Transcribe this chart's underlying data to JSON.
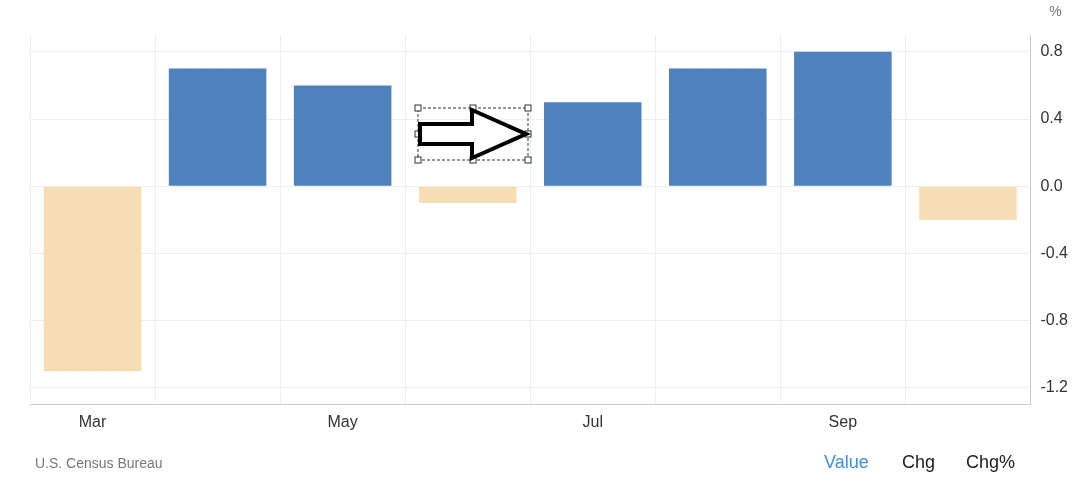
{
  "chart_data": {
    "type": "bar",
    "categories": [
      "Mar",
      null,
      "May",
      null,
      "Jul",
      null,
      "Sep",
      null
    ],
    "values": [
      -1.1,
      0.7,
      0.6,
      -0.1,
      0.5,
      0.7,
      0.8,
      -0.2
    ],
    "colors": [
      "#f5deb3",
      "#4f81bd",
      "#4f81bd",
      "#f5deb3",
      "#4f81bd",
      "#4f81bd",
      "#4f81bd",
      "#f5deb3"
    ],
    "ylabel": "%",
    "ylim": [
      -1.3,
      0.9
    ],
    "yticks": [
      -1.2,
      -0.8,
      -0.4,
      {
        "value": 0,
        "label": "0.0"
      },
      0.4,
      0.8
    ],
    "grid": true,
    "legend": false,
    "annotations": [
      "U.S. Census Bureau",
      "Value",
      "Chg",
      "Chg%"
    ]
  }
}
